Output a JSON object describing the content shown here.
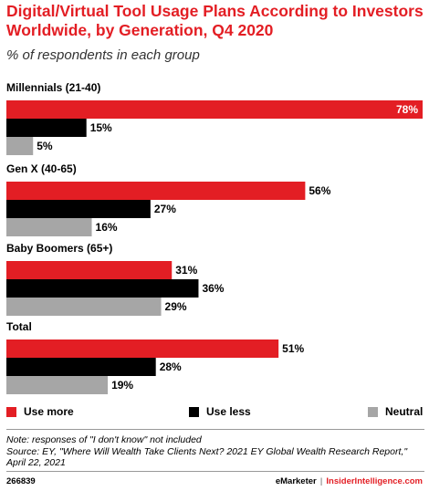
{
  "header": {
    "title": "Digital/Virtual Tool Usage Plans According to Investors Worldwide, by Generation, Q4 2020",
    "subtitle": "% of respondents in each group"
  },
  "colors": {
    "use_more": "#e31e24",
    "use_less": "#000000",
    "neutral": "#a6a6a6"
  },
  "chart_data": {
    "type": "bar",
    "orientation": "horizontal",
    "title": "Digital/Virtual Tool Usage Plans According to Investors Worldwide, by Generation, Q4 2020",
    "subtitle": "% of respondents in each group",
    "categories": [
      "Millennials (21-40)",
      "Gen X (40-65)",
      "Baby Boomers (65+)",
      "Total"
    ],
    "series": [
      {
        "name": "Use more",
        "values": [
          78,
          56,
          31,
          51
        ]
      },
      {
        "name": "Use less",
        "values": [
          15,
          27,
          36,
          28
        ]
      },
      {
        "name": "Neutral",
        "values": [
          5,
          16,
          29,
          19
        ]
      }
    ],
    "value_suffix": "%",
    "xlim": [
      0,
      78
    ],
    "grid": false,
    "legend_position": "bottom"
  },
  "legend": {
    "items": [
      "Use more",
      "Use less",
      "Neutral"
    ]
  },
  "footer": {
    "note": "Note: responses of \"I don't know\" not included",
    "source": "Source: EY, \"Where Will Wealth Take Clients Next? 2021 EY Global Wealth Research Report,\" April 22, 2021",
    "chart_id": "266839",
    "brand_1": "eMarketer",
    "separator": "|",
    "brand_2": "InsiderIntelligence.com"
  }
}
